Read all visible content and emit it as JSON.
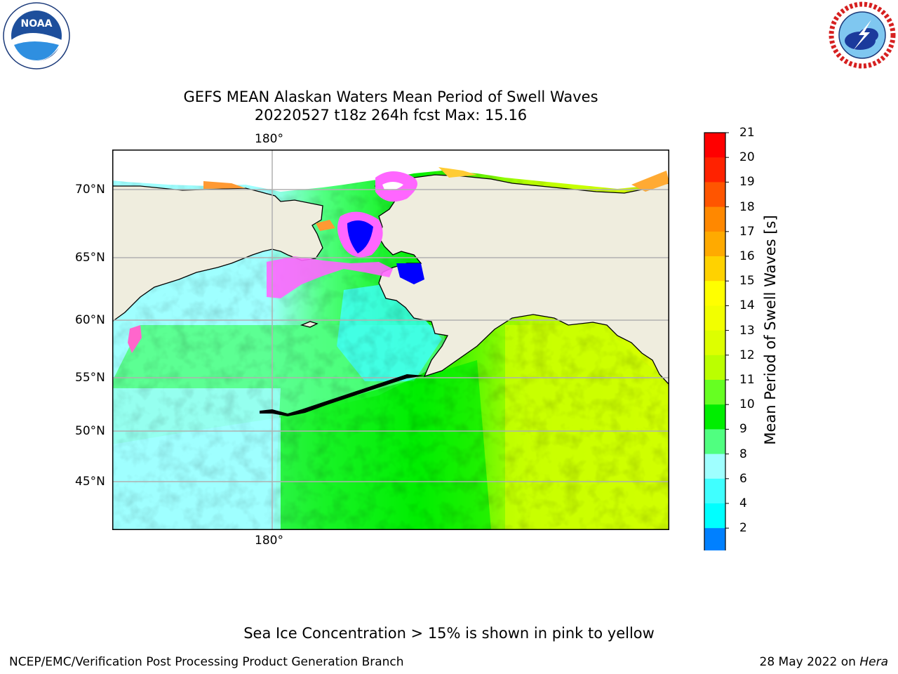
{
  "title_line1": "GEFS MEAN Alaskan Waters Mean Period of Swell Waves",
  "title_line2": "20220527 t18z 264h fcst   Max: 15.16",
  "logos": {
    "left": "noaa-logo",
    "right": "nws-logo"
  },
  "map": {
    "lon_labels": [
      "180°",
      "180°"
    ],
    "lat_labels": [
      "70°N",
      "65°N",
      "60°N",
      "55°N",
      "50°N",
      "45°N"
    ],
    "colors": {
      "land": "#efedde",
      "coast": "#000000",
      "grid": "#b0b0b0"
    }
  },
  "colorbar": {
    "label": "Mean Period of Swell Waves [s]",
    "ticks": [
      "21",
      "20",
      "19",
      "18",
      "17",
      "16",
      "15",
      "14",
      "13",
      "12",
      "11",
      "10",
      "9",
      "8",
      "6",
      "4",
      "2"
    ],
    "colors": [
      "#0000ff",
      "#0080ff",
      "#00ffff",
      "#40ffff",
      "#9fffff",
      "#50ff80",
      "#00ee00",
      "#66ff22",
      "#bbff00",
      "#ddff00",
      "#f2ff00",
      "#ffff00",
      "#ffd200",
      "#ffaa00",
      "#ff8800",
      "#ff5500",
      "#ff2200",
      "#ff0000"
    ]
  },
  "footnote": "Sea Ice Concentration > 15% is shown in pink to yellow",
  "credit": "NCEP/EMC/Verification Post Processing Product Generation Branch",
  "date_text": "28 May 2022 on ",
  "machine": "Hera"
}
